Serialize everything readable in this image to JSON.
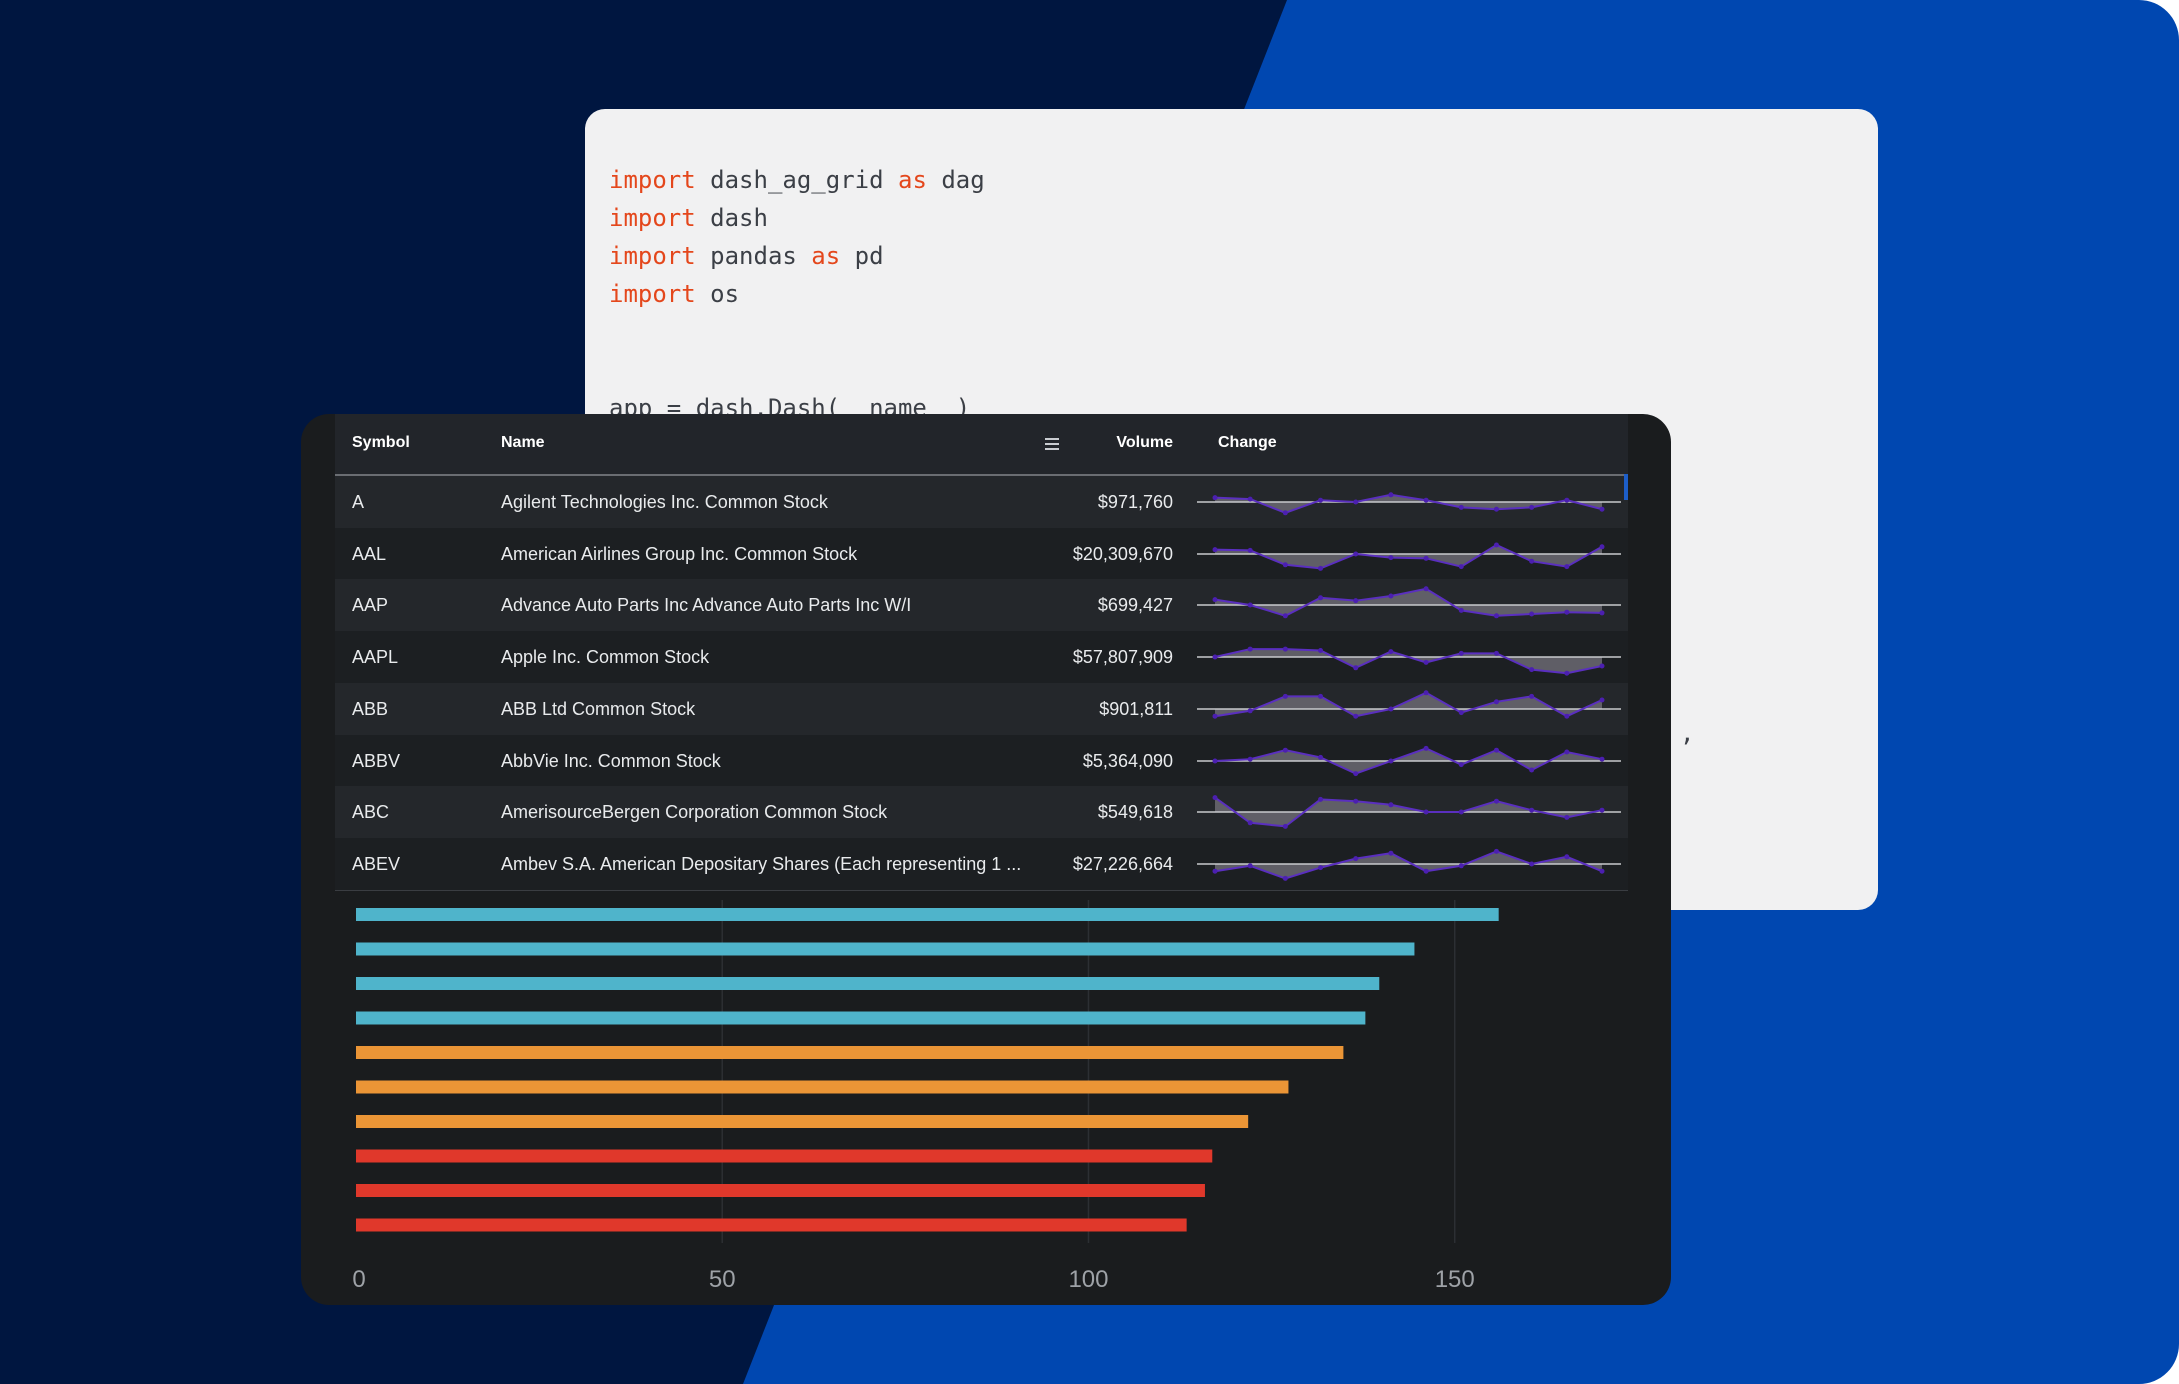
{
  "code": {
    "lines": [
      [
        {
          "t": "import",
          "k": true
        },
        {
          "t": " dash_ag_grid ",
          "k": false
        },
        {
          "t": "as",
          "k": true
        },
        {
          "t": " dag",
          "k": false
        }
      ],
      [
        {
          "t": "import",
          "k": true
        },
        {
          "t": " dash",
          "k": false
        }
      ],
      [
        {
          "t": "import",
          "k": true
        },
        {
          "t": " pandas ",
          "k": false
        },
        {
          "t": "as",
          "k": true
        },
        {
          "t": " pd",
          "k": false
        }
      ],
      [
        {
          "t": "import",
          "k": true
        },
        {
          "t": " os",
          "k": false
        }
      ],
      [
        {
          "t": "",
          "k": false
        }
      ],
      [
        {
          "t": "",
          "k": false
        }
      ],
      [
        {
          "t": "app = dash.Dash(__name__)",
          "k": false
        }
      ]
    ],
    "stray_char": ","
  },
  "grid": {
    "columns": {
      "symbol": "Symbol",
      "name": "Name",
      "volume": "Volume",
      "change": "Change"
    },
    "rows": [
      {
        "symbol": "A",
        "name": "Agilent Technologies Inc. Common Stock",
        "volume": "$971,760",
        "spark": [
          0.62,
          0.58,
          0.2,
          0.55,
          0.5,
          0.7,
          0.55,
          0.35,
          0.3,
          0.35,
          0.55,
          0.3
        ]
      },
      {
        "symbol": "AAL",
        "name": "American Airlines Group Inc. Common Stock",
        "volume": "$20,309,670",
        "spark": [
          0.62,
          0.6,
          0.2,
          0.1,
          0.5,
          0.4,
          0.38,
          0.15,
          0.75,
          0.3,
          0.15,
          0.7
        ]
      },
      {
        "symbol": "AAP",
        "name": "Advance Auto Parts Inc Advance Auto Parts Inc W/I",
        "volume": "$699,427",
        "spark": [
          0.65,
          0.5,
          0.2,
          0.7,
          0.62,
          0.75,
          0.95,
          0.35,
          0.2,
          0.25,
          0.3,
          0.28
        ]
      },
      {
        "symbol": "AAPL",
        "name": "Apple Inc. Common Stock",
        "volume": "$57,807,909",
        "spark": [
          0.5,
          0.72,
          0.72,
          0.68,
          0.2,
          0.65,
          0.35,
          0.6,
          0.6,
          0.15,
          0.05,
          0.25
        ]
      },
      {
        "symbol": "ABB",
        "name": "ABB Ltd Common Stock",
        "volume": "$901,811",
        "spark": [
          0.3,
          0.45,
          0.85,
          0.85,
          0.3,
          0.5,
          0.95,
          0.4,
          0.7,
          0.85,
          0.3,
          0.75
        ]
      },
      {
        "symbol": "ABBV",
        "name": "AbbVie Inc. Common Stock",
        "volume": "$5,364,090",
        "spark": [
          0.5,
          0.55,
          0.8,
          0.6,
          0.15,
          0.5,
          0.85,
          0.4,
          0.8,
          0.25,
          0.75,
          0.55
        ]
      },
      {
        "symbol": "ABC",
        "name": "AmerisourceBergen Corporation Common Stock",
        "volume": "$549,618",
        "spark": [
          0.9,
          0.2,
          0.1,
          0.85,
          0.8,
          0.7,
          0.5,
          0.5,
          0.8,
          0.55,
          0.35,
          0.55
        ]
      },
      {
        "symbol": "ABEV",
        "name": "Ambev S.A. American Depositary Shares (Each representing 1 ...",
        "volume": "$27,226,664",
        "spark": [
          0.3,
          0.45,
          0.1,
          0.4,
          0.65,
          0.8,
          0.3,
          0.45,
          0.85,
          0.5,
          0.7,
          0.3
        ]
      }
    ]
  },
  "bar_chart": {
    "type": "bar",
    "orientation": "horizontal",
    "xlim": [
      0,
      157
    ],
    "xticks": [
      "0",
      "50",
      "100",
      "150"
    ],
    "xtick_values": [
      0,
      50,
      100,
      150
    ],
    "grid": true,
    "bars": [
      {
        "value": 156,
        "color": "#4fb4cb"
      },
      {
        "value": 144.5,
        "color": "#4fb4cb"
      },
      {
        "value": 139.7,
        "color": "#4fb4cb"
      },
      {
        "value": 137.8,
        "color": "#4fb4cb"
      },
      {
        "value": 134.8,
        "color": "#eb9536"
      },
      {
        "value": 127.3,
        "color": "#eb9536"
      },
      {
        "value": 121.8,
        "color": "#eb9536"
      },
      {
        "value": 116.9,
        "color": "#e0382b"
      },
      {
        "value": 115.9,
        "color": "#e0382b"
      },
      {
        "value": 113.4,
        "color": "#e0382b"
      }
    ]
  }
}
